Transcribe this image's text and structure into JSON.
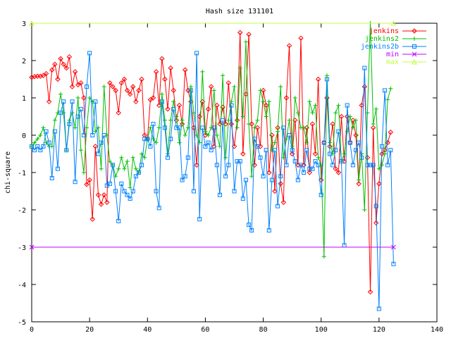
{
  "chart_data": {
    "type": "line",
    "title": "Hash size 131101",
    "xlabel": "",
    "ylabel": "chi-square",
    "xlim": [
      0,
      140
    ],
    "ylim": [
      -5,
      3
    ],
    "xticks": [
      "0",
      "20",
      "40",
      "60",
      "80",
      "100",
      "120",
      "140"
    ],
    "yticks": [
      "-5",
      "-4",
      "-3",
      "-2",
      "-1",
      "0",
      "1",
      "2",
      "3"
    ],
    "grid": false,
    "legend_position": "top-right",
    "series": [
      {
        "name": "jenkins",
        "color": "#ff0000",
        "marker": "diamond",
        "y": [
          1.55,
          1.57,
          1.58,
          1.58,
          1.6,
          1.65,
          0.9,
          1.75,
          1.9,
          1.5,
          2.05,
          1.9,
          1.8,
          2.1,
          1.3,
          1.7,
          1.35,
          1.4,
          1.0,
          -1.32,
          -1.2,
          -2.25,
          -0.3,
          -1.6,
          -1.85,
          -1.6,
          -1.8,
          1.4,
          1.3,
          1.2,
          0.6,
          1.4,
          1.5,
          1.2,
          1.1,
          1.3,
          0.9,
          1.2,
          1.5,
          0.0,
          -0.1,
          0.95,
          1.0,
          1.7,
          0.8,
          2.05,
          1.5,
          0.7,
          1.8,
          1.2,
          0.4,
          0.8,
          0.3,
          1.75,
          1.2,
          0.9,
          0.2,
          -0.8,
          0.5,
          0.9,
          0.0,
          0.7,
          1.3,
          -0.3,
          0.8,
          0.3,
          0.75,
          0.3,
          1.4,
          0.3,
          -0.3,
          0.4,
          2.75,
          -0.5,
          1.1,
          2.7,
          0.3,
          -0.8,
          0.2,
          -0.3,
          1.2,
          0.8,
          -1.0,
          0.0,
          -1.5,
          0.2,
          -1.3,
          -1.8,
          1.0,
          2.4,
          -0.5,
          0.4,
          -0.8,
          2.6,
          -0.8,
          0.2,
          -1.0,
          0.3,
          -0.5,
          1.5,
          -1.2,
          -0.2,
          1.0,
          -0.3,
          0.3,
          -0.9,
          -1.0,
          0.5,
          -0.7,
          0.5,
          -0.2,
          0.4,
          0.0,
          -1.3,
          0.8,
          1.3,
          -0.6,
          -4.2,
          0.2,
          -2.35,
          -1.3,
          -0.5,
          -0.4,
          -0.2,
          0.08
        ]
      },
      {
        "name": "jenkins2",
        "color": "#00c000",
        "marker": "plus",
        "y": [
          -0.3,
          -0.2,
          -0.1,
          0.0,
          0.2,
          -0.2,
          -0.3,
          -0.3,
          0.4,
          0.6,
          1.1,
          0.6,
          -0.4,
          0.4,
          0.6,
          0.2,
          1.0,
          -0.4,
          -1.0,
          0.2,
          1.0,
          0.9,
          0.1,
          0.2,
          -0.9,
          1.3,
          0.0,
          -0.7,
          -0.8,
          -1.1,
          -0.9,
          -0.6,
          -0.9,
          -0.7,
          -1.4,
          -0.6,
          -0.9,
          -1.0,
          -0.5,
          -0.6,
          -0.1,
          0.2,
          -0.1,
          -0.2,
          0.2,
          1.1,
          0.4,
          -0.5,
          0.4,
          0.9,
          0.5,
          -0.2,
          0.4,
          0.0,
          0.2,
          1.3,
          0.6,
          0.0,
          -0.2,
          1.7,
          0.1,
          0.0,
          0.2,
          1.2,
          0.0,
          -0.3,
          1.6,
          -0.6,
          0.4,
          0.9,
          1.3,
          0.2,
          1.8,
          0.5,
          2.5,
          0.3,
          -1.1,
          0.2,
          0.4,
          1.2,
          0.9,
          0.5,
          0.9,
          -0.4,
          -0.2,
          0.1,
          1.3,
          -0.6,
          -0.1,
          0.4,
          -0.3,
          1.0,
          0.6,
          0.2,
          0.2,
          -0.2,
          0.9,
          0.6,
          0.8,
          -0.6,
          -0.8,
          -3.25,
          1.6,
          -0.2,
          -0.5,
          0.6,
          0.8,
          -0.7,
          -0.5,
          0.1,
          0.5,
          0.2,
          0.4,
          -1.2,
          -0.5,
          -2.0,
          0.6,
          3.0,
          0.3,
          0.7,
          -0.9,
          -0.8,
          -0.5,
          0.95,
          1.25
        ]
      },
      {
        "name": "jenkins2b",
        "color": "#0080ff",
        "marker": "square",
        "y": [
          -0.3,
          -0.4,
          -0.3,
          -0.4,
          -0.3,
          0.1,
          -0.2,
          -1.15,
          0.1,
          -0.9,
          0.6,
          0.9,
          -0.4,
          0.3,
          0.9,
          -1.25,
          0.5,
          0.7,
          0.0,
          1.3,
          2.2,
          0.0,
          0.9,
          -0.5,
          -0.2,
          0.0,
          -1.35,
          -1.3,
          -0.8,
          -1.5,
          -2.3,
          -1.3,
          -1.5,
          -1.6,
          -1.7,
          -1.5,
          -1.1,
          -1.0,
          -0.8,
          -0.1,
          -0.1,
          -0.3,
          0.3,
          -1.5,
          -1.95,
          0.9,
          0.2,
          -0.6,
          -0.1,
          0.7,
          0.2,
          0.2,
          -1.2,
          -1.1,
          -0.6,
          1.2,
          -1.5,
          2.2,
          -2.25,
          0.2,
          -0.3,
          -0.2,
          -0.4,
          0.2,
          -0.8,
          -1.6,
          0.4,
          -1.1,
          -0.8,
          0.8,
          -1.5,
          -0.7,
          -0.7,
          -1.7,
          -1.2,
          -2.4,
          -2.55,
          -0.1,
          -0.3,
          -0.6,
          -1.1,
          -0.4,
          -2.55,
          -1.2,
          -0.4,
          -1.9,
          -1.1,
          0.2,
          -0.8,
          0.0,
          -0.4,
          -0.7,
          -1.2,
          -0.8,
          -1.0,
          -0.4,
          -0.9,
          -0.9,
          -0.7,
          -0.8,
          -1.6,
          -0.2,
          1.5,
          -0.5,
          -0.8,
          -0.4,
          0.1,
          -0.7,
          -2.95,
          0.8,
          -0.2,
          -0.8,
          -0.4,
          -0.2,
          -0.6,
          1.8,
          -0.8,
          -0.8,
          -0.8,
          -1.9,
          -4.65,
          -0.3,
          1.2,
          -0.8,
          -0.4,
          -3.45
        ]
      },
      {
        "name": "min",
        "color": "#c000ff",
        "marker": "cross",
        "x": [
          0,
          125
        ],
        "y": [
          -3,
          -3
        ]
      },
      {
        "name": "max",
        "color": "#c0ff40",
        "marker": "triangle",
        "x": [
          0,
          125
        ],
        "y": [
          3,
          3
        ]
      }
    ]
  }
}
